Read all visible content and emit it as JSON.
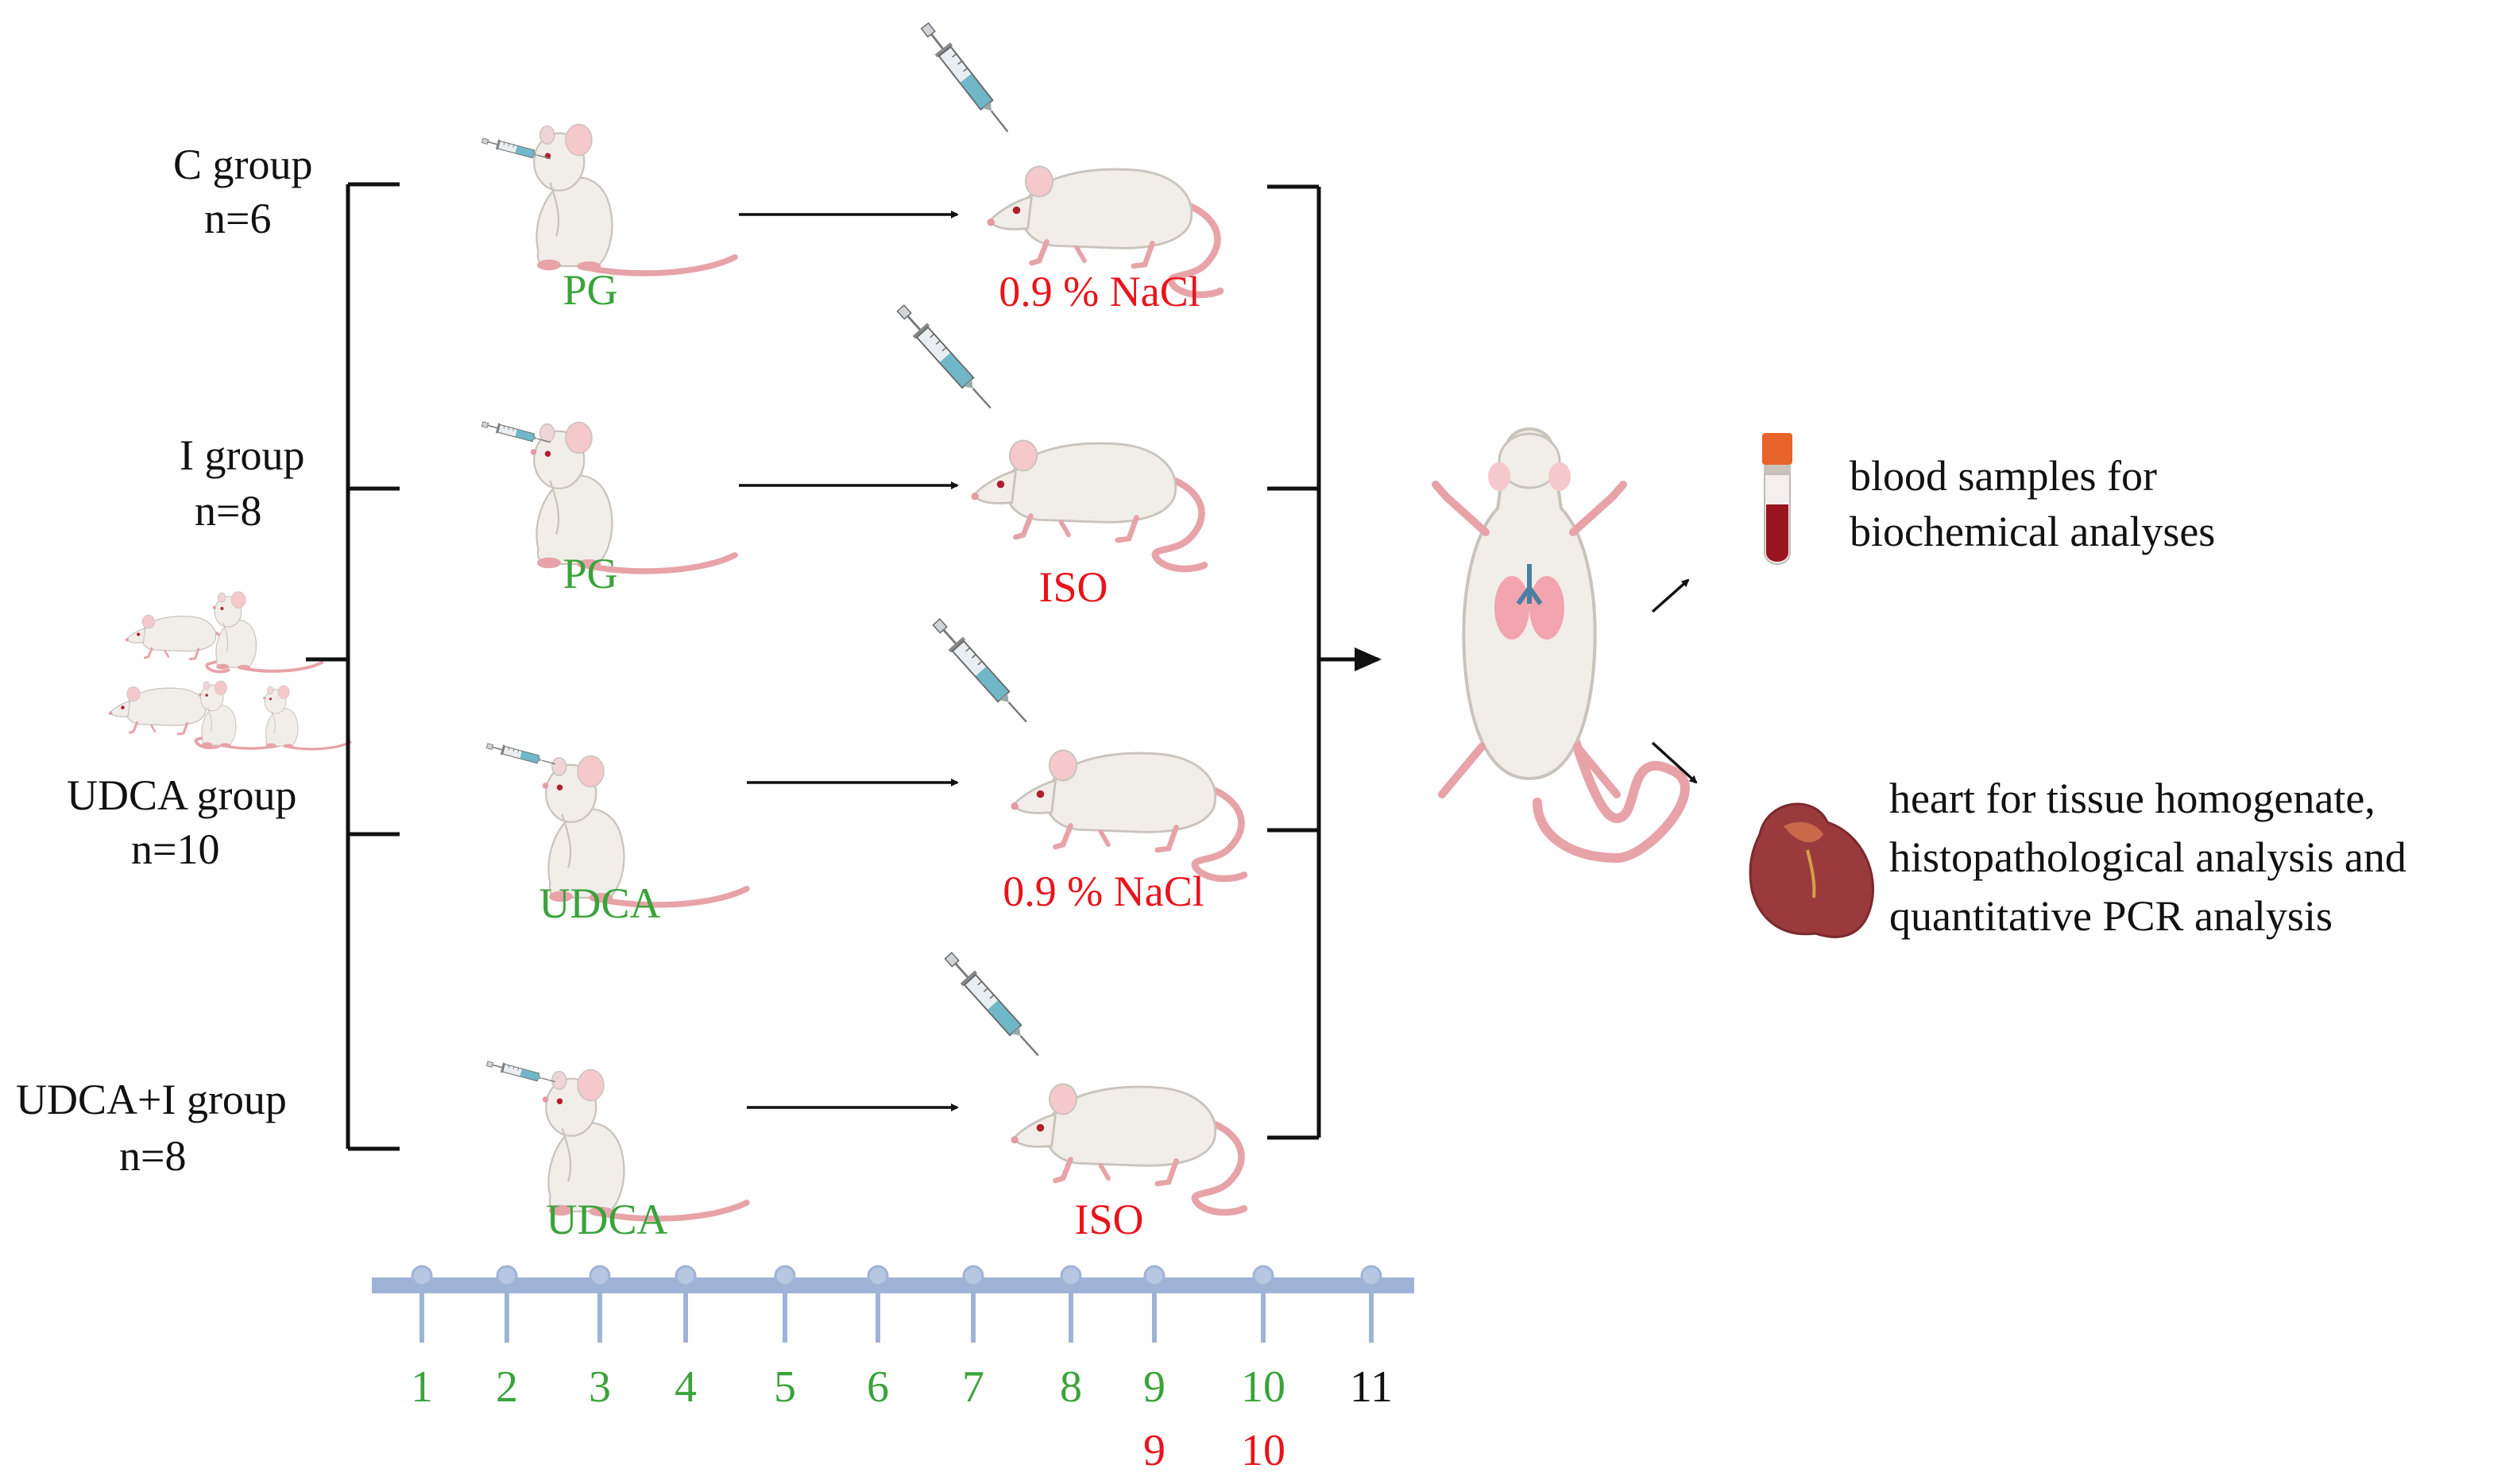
{
  "groups": [
    {
      "name": "C group",
      "n": "n=6"
    },
    {
      "name": "I group",
      "n": "n=8"
    },
    {
      "name": "UDCA group",
      "n": "n=10"
    },
    {
      "name": "UDCA+I group",
      "n": "n=8"
    }
  ],
  "pretreatments": [
    "PG",
    "PG",
    "UDCA",
    "UDCA"
  ],
  "injections": [
    "0.9 % NaCl",
    "ISO",
    "0.9 % NaCl",
    "ISO"
  ],
  "outcomes": {
    "blood": [
      "blood samples for",
      "biochemical analyses"
    ],
    "heart": [
      "heart for tissue homogenate,",
      "histopathological analysis and",
      "quantitative PCR analysis"
    ]
  },
  "timeline": {
    "days": [
      "1",
      "2",
      "3",
      "4",
      "5",
      "6",
      "7",
      "8",
      "9",
      "10",
      "11"
    ],
    "injection_days": [
      "9",
      "10"
    ]
  },
  "colors": {
    "pretreatment": "#3aa33a",
    "injection": "#e8141c",
    "timeline_bar": "#9fb3d6",
    "text": "#111111"
  },
  "icons": [
    "rat-group-icon",
    "syringe-icon",
    "rat-sitting-icon",
    "rat-walking-icon",
    "dissected-rat-icon",
    "blood-tube-icon",
    "heart-icon"
  ]
}
